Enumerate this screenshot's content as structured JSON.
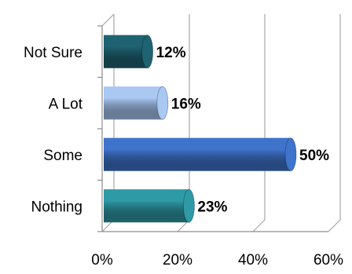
{
  "chart_data": {
    "type": "bar",
    "orientation": "horizontal",
    "categories": [
      "Nothing",
      "Some",
      "A Lot",
      "Not Sure"
    ],
    "values": [
      23,
      50,
      16,
      12
    ],
    "data_labels": [
      "23%",
      "50%",
      "16%",
      "12%"
    ],
    "x_ticks": [
      "0%",
      "20%",
      "40%",
      "60%"
    ],
    "xlim": [
      0,
      60
    ],
    "grid": true,
    "legend": "none",
    "style": "3d-cylinder",
    "colors": [
      "#2e9aa6",
      "#3f74cc",
      "#a9c8f2",
      "#1f6373"
    ],
    "title": "",
    "xlabel": "",
    "ylabel": ""
  }
}
